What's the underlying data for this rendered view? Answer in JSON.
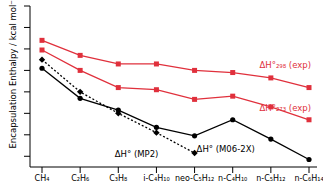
{
  "chart_data": {
    "type": "line",
    "y_label": "Encapsulation Enthalpy / kcal mol⁻¹",
    "categories": [
      "CH₄",
      "C₂H₆",
      "C₃H₈",
      "i-C₄H₁₀",
      "neo-C₅H₁₂",
      "n-C₄H₁₀",
      "n-C₅H₁₂",
      "n-C₆H₁₄"
    ],
    "ylim": [
      -15,
      0
    ],
    "yticks": [
      -14,
      -12,
      -10,
      -8,
      -6,
      -4,
      -2,
      0
    ],
    "tick_labels": "x",
    "grid": false,
    "series": [
      {
        "name": "ΔH°₂₉₈ (exp)",
        "color": "#e0303c",
        "marker": "square",
        "line_style": "solid",
        "values": [
          -3.2,
          -4.6,
          -5.4,
          -5.4,
          -6.0,
          -6.2,
          -6.7,
          -7.6
        ]
      },
      {
        "name": "ΔH°₂₇₃ (exp)",
        "color": "#e0303c",
        "marker": "square",
        "line_style": "solid",
        "values": [
          -4.1,
          -6.0,
          -7.6,
          -7.8,
          -8.7,
          -8.4,
          -9.4,
          -10.6
        ]
      },
      {
        "name": "ΔH° (M06-2X)",
        "color": "#000000",
        "marker": "circle",
        "line_style": "solid",
        "values": [
          -5.8,
          -8.6,
          -9.7,
          -11.3,
          -12.1,
          -10.6,
          -12.4,
          -14.3
        ]
      },
      {
        "name": "ΔH° (MP2)",
        "color": "#000000",
        "marker": "diamond",
        "line_style": "dotted",
        "values": [
          -5.0,
          -8.0,
          -10.0,
          -11.8,
          -13.7,
          null,
          null,
          null
        ]
      }
    ]
  }
}
